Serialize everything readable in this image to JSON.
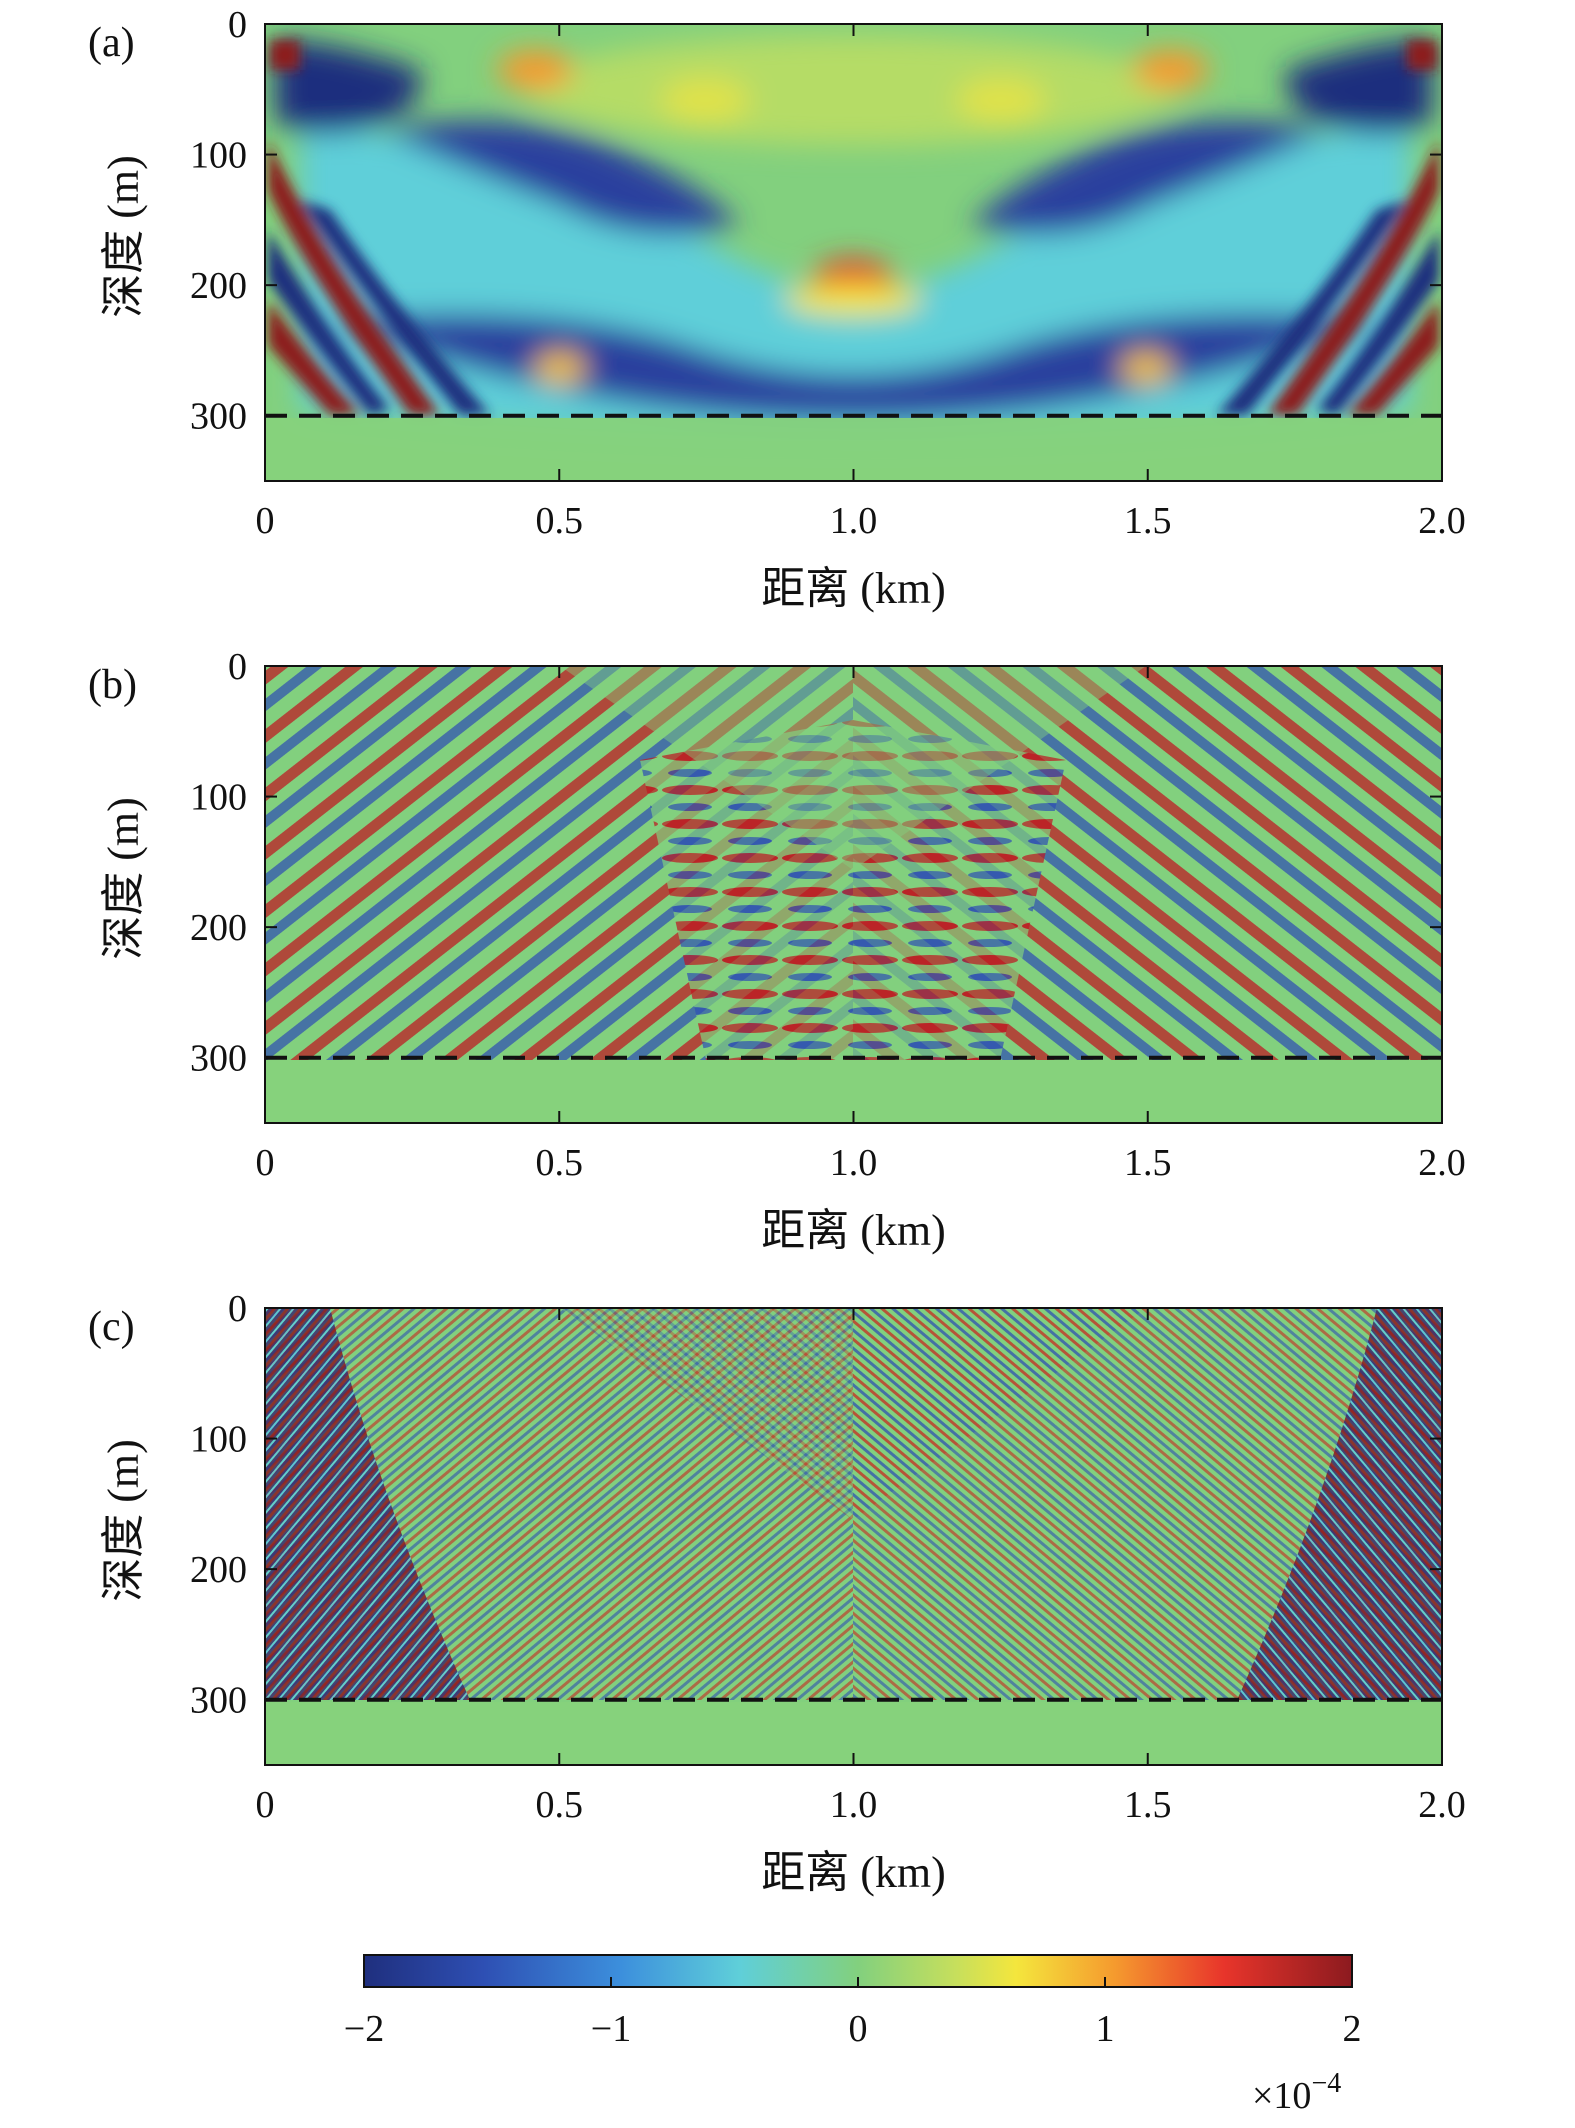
{
  "chart_data": [
    {
      "type": "heatmap",
      "panel_label": "(a)",
      "xlabel": "距离 (km)",
      "ylabel": "深度 (m)",
      "xlim": [
        0,
        2.0
      ],
      "ylim": [
        350,
        0
      ],
      "x_ticks": [
        0,
        0.5,
        1.0,
        1.5,
        2.0
      ],
      "x_tick_labels": [
        "0",
        "0.5",
        "1.0",
        "1.5",
        "2.0"
      ],
      "y_ticks": [
        0,
        100,
        200,
        300
      ],
      "y_tick_labels": [
        "0",
        "100",
        "200",
        "300"
      ],
      "reference_line": {
        "depth": 300,
        "style": "dashed"
      },
      "wavefield": "low-frequency"
    },
    {
      "type": "heatmap",
      "panel_label": "(b)",
      "xlabel": "距离 (km)",
      "ylabel": "深度 (m)",
      "xlim": [
        0,
        2.0
      ],
      "ylim": [
        350,
        0
      ],
      "x_ticks": [
        0,
        0.5,
        1.0,
        1.5,
        2.0
      ],
      "x_tick_labels": [
        "0",
        "0.5",
        "1.0",
        "1.5",
        "2.0"
      ],
      "y_ticks": [
        0,
        100,
        200,
        300
      ],
      "y_tick_labels": [
        "0",
        "100",
        "200",
        "300"
      ],
      "reference_line": {
        "depth": 300,
        "style": "dashed"
      },
      "wavefield": "mid-frequency"
    },
    {
      "type": "heatmap",
      "panel_label": "(c)",
      "xlabel": "距离 (km)",
      "ylabel": "深度 (m)",
      "xlim": [
        0,
        2.0
      ],
      "ylim": [
        350,
        0
      ],
      "x_ticks": [
        0,
        0.5,
        1.0,
        1.5,
        2.0
      ],
      "x_tick_labels": [
        "0",
        "0.5",
        "1.0",
        "1.5",
        "2.0"
      ],
      "y_ticks": [
        0,
        100,
        200,
        300
      ],
      "y_tick_labels": [
        "0",
        "100",
        "200",
        "300"
      ],
      "reference_line": {
        "depth": 300,
        "style": "dashed"
      },
      "wavefield": "high-frequency"
    }
  ],
  "colorbar": {
    "ticks": [
      -2,
      -1,
      0,
      1,
      2
    ],
    "tick_labels": [
      "−2",
      "−1",
      "0",
      "1",
      "2"
    ],
    "range": [
      -2,
      2
    ],
    "multiplier_base": "×10",
    "multiplier_exp": "−4",
    "colormap": "jet",
    "colors": [
      "#1f2f7e",
      "#2e4fb3",
      "#3c8fdc",
      "#5fcfd9",
      "#82d07e",
      "#c7df5c",
      "#f4e63d",
      "#f59a2e",
      "#e8352b",
      "#8c1a1f"
    ]
  }
}
